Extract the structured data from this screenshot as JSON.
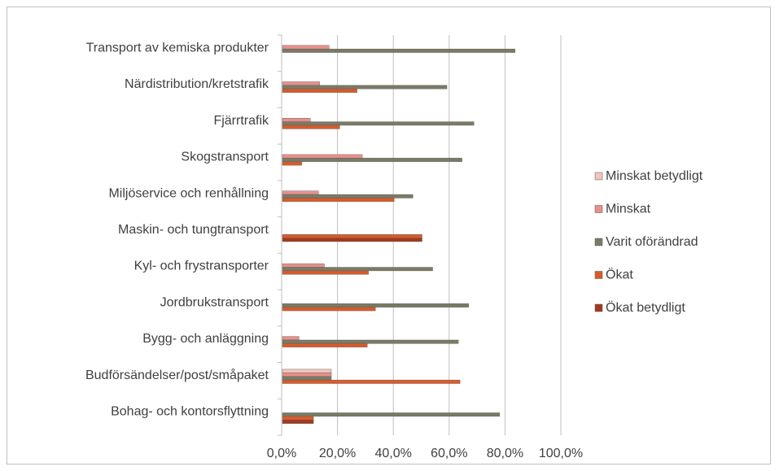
{
  "chart_data": {
    "type": "bar",
    "orientation": "horizontal",
    "title": "",
    "xlabel": "",
    "ylabel": "",
    "xlim": [
      0,
      100
    ],
    "x_ticks": [
      "0,0%",
      "20,0%",
      "40,0%",
      "60,0%",
      "80,0%",
      "100,0%"
    ],
    "grid": "vertical",
    "legend_position": "right",
    "categories": [
      "Transport av kemiska produkter",
      "Närdistribution/kretstrafik",
      "Fjärrtrafik",
      "Skogstransport",
      "Miljöservice och renhållning",
      "Maskin- och tungtransport",
      "Kyl- och frystransporter",
      "Jordbrukstransport",
      "Bygg- och anläggning",
      "Budförsändelser/post/småpaket",
      "Bohag- och kontorsflyttning"
    ],
    "series": [
      {
        "name": "Minskat betydligt",
        "color": "#f2c4bb",
        "values": [
          0,
          0,
          0,
          0,
          0,
          0,
          0,
          0,
          0,
          17.5,
          0
        ]
      },
      {
        "name": "Minskat",
        "color": "#e8908a",
        "values": [
          16.7,
          13.3,
          10.0,
          28.6,
          12.9,
          0,
          15.0,
          0,
          5.9,
          17.5,
          0
        ]
      },
      {
        "name": "Varit oförändrad",
        "color": "#7a7a66",
        "values": [
          83.3,
          58.9,
          68.6,
          64.3,
          46.7,
          0,
          53.8,
          66.7,
          63.0,
          17.5,
          77.8
        ]
      },
      {
        "name": "Ökat",
        "color": "#d95b2a",
        "values": [
          0,
          26.7,
          20.5,
          6.9,
          40.0,
          50.0,
          30.8,
          33.3,
          30.4,
          63.6,
          11.1
        ]
      },
      {
        "name": "Ökat betydligt",
        "color": "#a23a1e",
        "values": [
          0,
          0,
          0,
          0,
          0,
          50.0,
          0,
          0,
          0,
          0,
          11.1
        ]
      }
    ]
  }
}
